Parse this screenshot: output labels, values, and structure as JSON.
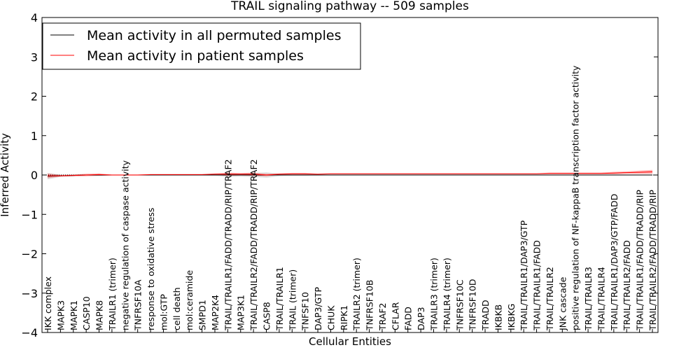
{
  "chart_data": {
    "type": "line",
    "title": "TRAIL signaling pathway -- 509 samples",
    "xlabel": "Cellular Entities",
    "ylabel": "Inferred Activity",
    "ylim": [
      -4,
      4
    ],
    "yticks": [
      -4,
      -3,
      -2,
      -1,
      0,
      1,
      2,
      3,
      4
    ],
    "ytick_labels": [
      "−4",
      "−3",
      "−2",
      "−1",
      "0",
      "1",
      "2",
      "3",
      "4"
    ],
    "legend_position": "top-left",
    "categories": [
      "IKK complex",
      "MAPK3",
      "MAPK1",
      "CASP10",
      "MAPK8",
      "TRAILR1 (trimer)",
      "negative regulation of caspase activity",
      "TNFRSF10A",
      "response to oxidative stress",
      "mol:GTP",
      "cell death",
      "mol:ceramide",
      "SMPD1",
      "MAP2K4",
      "TRAIL/TRAILR1/FADD/TRADD/RIP/TRAF2",
      "MAP3K1",
      "TRAIL/TRAILR2/FADD/TRADD/RIP/TRAF2",
      "CASP8",
      "TRAIL/TRAILR1",
      "TRAIL (trimer)",
      "TNFSF10",
      "DAP3/GTP",
      "CHUK",
      "RIPK1",
      "TRAILR2 (trimer)",
      "TNFRSF10B",
      "TRAF2",
      "CFLAR",
      "FADD",
      "DAP3",
      "TRAILR3 (trimer)",
      "TRAILR4 (trimer)",
      "TNFRSF10C",
      "TNFRSF10D",
      "TRADD",
      "IKBKB",
      "IKBKG",
      "TRAIL/TRAILR1/DAP3/GTP",
      "TRAIL/TRAILR1/FADD",
      "TRAIL/TRAILR2",
      "JNK cascade",
      "positive regulation of NF-kappaB transcription factor activity",
      "TRAIL/TRAILR3",
      "TRAIL/TRAILR4",
      "TRAIL/TRAILR1/DAP3/GTP/FADD",
      "TRAIL/TRAILR2/FADD",
      "TRAIL/TRAILR1/FADD/TRADD/RIP",
      "TRAIL/TRAILR2/FADD/TRADD/RIP"
    ],
    "series": [
      {
        "name": "Mean activity in all permuted samples",
        "color": "#000000",
        "values": [
          -0.03,
          -0.02,
          -0.01,
          0.0,
          0.0,
          0.0,
          0.0,
          0.0,
          0.0,
          0.0,
          0.0,
          0.0,
          0.0,
          0.0,
          0.0,
          0.0,
          0.0,
          0.0,
          0.0,
          0.0,
          0.0,
          0.0,
          0.0,
          0.0,
          0.0,
          0.0,
          0.0,
          0.0,
          0.0,
          0.0,
          0.0,
          0.0,
          0.0,
          0.0,
          0.0,
          0.0,
          0.0,
          0.0,
          0.0,
          0.0,
          0.0,
          0.0,
          0.0,
          0.0,
          0.0,
          0.0,
          0.0,
          0.0
        ],
        "band": [
          0.08,
          0.03,
          0.02,
          0.02,
          0.02,
          0.01,
          0.01,
          0.01,
          0.01,
          0.01,
          0.01,
          0.01,
          0.01,
          0.02,
          0.05,
          0.04,
          0.05,
          0.07,
          0.03,
          0.02,
          0.02,
          0.01,
          0.01,
          0.01,
          0.01,
          0.01,
          0.01,
          0.01,
          0.01,
          0.01,
          0.01,
          0.01,
          0.01,
          0.01,
          0.01,
          0.01,
          0.01,
          0.01,
          0.01,
          0.01,
          0.01,
          0.01,
          0.01,
          0.01,
          0.01,
          0.01,
          0.01,
          0.01
        ]
      },
      {
        "name": "Mean activity in patient samples",
        "color": "#ff0000",
        "values": [
          -0.02,
          -0.02,
          -0.01,
          0.0,
          0.01,
          0.0,
          0.0,
          0.0,
          0.01,
          0.01,
          0.01,
          0.01,
          0.01,
          0.02,
          0.02,
          0.02,
          0.02,
          0.0,
          0.02,
          0.03,
          0.03,
          0.02,
          0.03,
          0.03,
          0.03,
          0.03,
          0.03,
          0.03,
          0.03,
          0.03,
          0.03,
          0.03,
          0.03,
          0.03,
          0.03,
          0.03,
          0.03,
          0.03,
          0.03,
          0.04,
          0.04,
          0.04,
          0.04,
          0.04,
          0.05,
          0.06,
          0.07,
          0.08
        ],
        "band": [
          0.06,
          0.02,
          0.02,
          0.03,
          0.03,
          0.01,
          0.01,
          0.01,
          0.01,
          0.01,
          0.01,
          0.01,
          0.01,
          0.02,
          0.04,
          0.03,
          0.04,
          0.03,
          0.02,
          0.02,
          0.02,
          0.01,
          0.01,
          0.01,
          0.01,
          0.01,
          0.01,
          0.01,
          0.01,
          0.01,
          0.01,
          0.01,
          0.01,
          0.01,
          0.01,
          0.01,
          0.01,
          0.01,
          0.01,
          0.02,
          0.02,
          0.02,
          0.02,
          0.02,
          0.03,
          0.03,
          0.04,
          0.05
        ]
      }
    ],
    "reference_line": 0
  }
}
